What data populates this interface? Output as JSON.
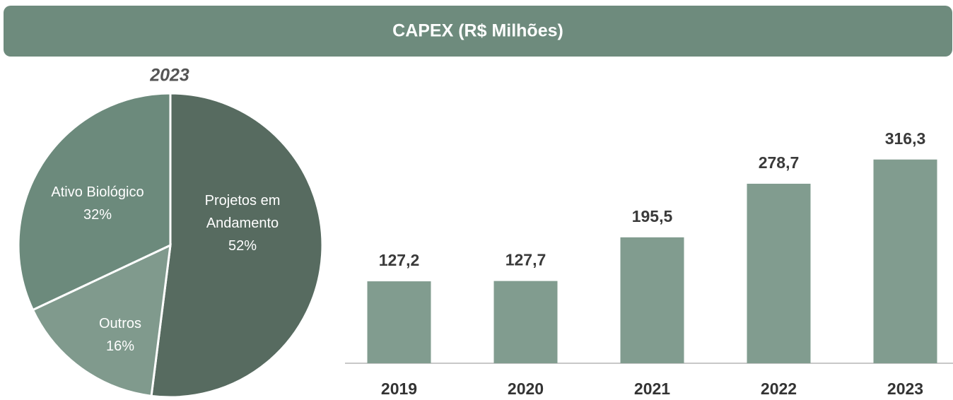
{
  "header": {
    "title": "CAPEX (R$ Milhões)"
  },
  "chart_data": [
    {
      "type": "pie",
      "title": "2023",
      "categories": [
        "Projetos em Andamento",
        "Outros",
        "Ativo Biológico"
      ],
      "values": [
        52,
        16,
        32
      ],
      "value_labels": [
        "52%",
        "16%",
        "32%"
      ],
      "colors": [
        "#576b60",
        "#809a8d",
        "#6c8a7c"
      ]
    },
    {
      "type": "bar",
      "categories": [
        "2019",
        "2020",
        "2021",
        "2022",
        "2023"
      ],
      "values": [
        127.2,
        127.7,
        195.5,
        278.7,
        316.3
      ],
      "value_labels": [
        "127,2",
        "127,7",
        "195,5",
        "278,7",
        "316,3"
      ],
      "color": "#819c8f",
      "ylim": [
        0,
        350
      ]
    }
  ]
}
